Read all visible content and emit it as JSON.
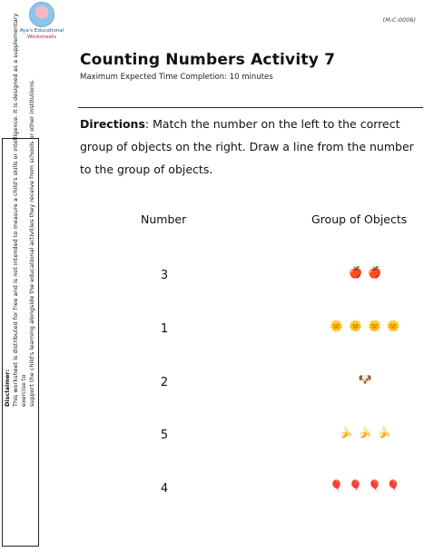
{
  "logo": {
    "line1": "Aya's Educational",
    "line2": "Worksheets"
  },
  "code": "(M-C-0006)",
  "title": "Counting Numbers Activity 7",
  "subtitle": "Maximum Expected Time Completion: 10 minutes",
  "directions": {
    "label": "Directions",
    "text": ": Match the number on the left to the correct group of objects on the right. Draw a line from the number to the group of objects."
  },
  "disclaimer": {
    "heading": "Disclaimer:",
    "line1": "This worksheet is distributed for free and is not intended to measure a child's skills or intelligence. It is designed as a supplementary exercise to",
    "line2": "support the child's learning alongside the educational activities they receive from schools or other institutions."
  },
  "columns": {
    "left": "Number",
    "right": "Group of Objects"
  },
  "rows": [
    {
      "number": "3",
      "objects": "🍎🍎",
      "object_icon": "apple-icon"
    },
    {
      "number": "1",
      "objects": "🌞🌞🌞🌞",
      "object_icon": "sun-icon"
    },
    {
      "number": "2",
      "objects": "🐶",
      "object_icon": "dog-icon"
    },
    {
      "number": "5",
      "objects": "🍌🍌🍌",
      "object_icon": "banana-icon"
    },
    {
      "number": "4",
      "objects": "🎈🎈🎈🎈",
      "object_icon": "balloon-icon"
    }
  ]
}
